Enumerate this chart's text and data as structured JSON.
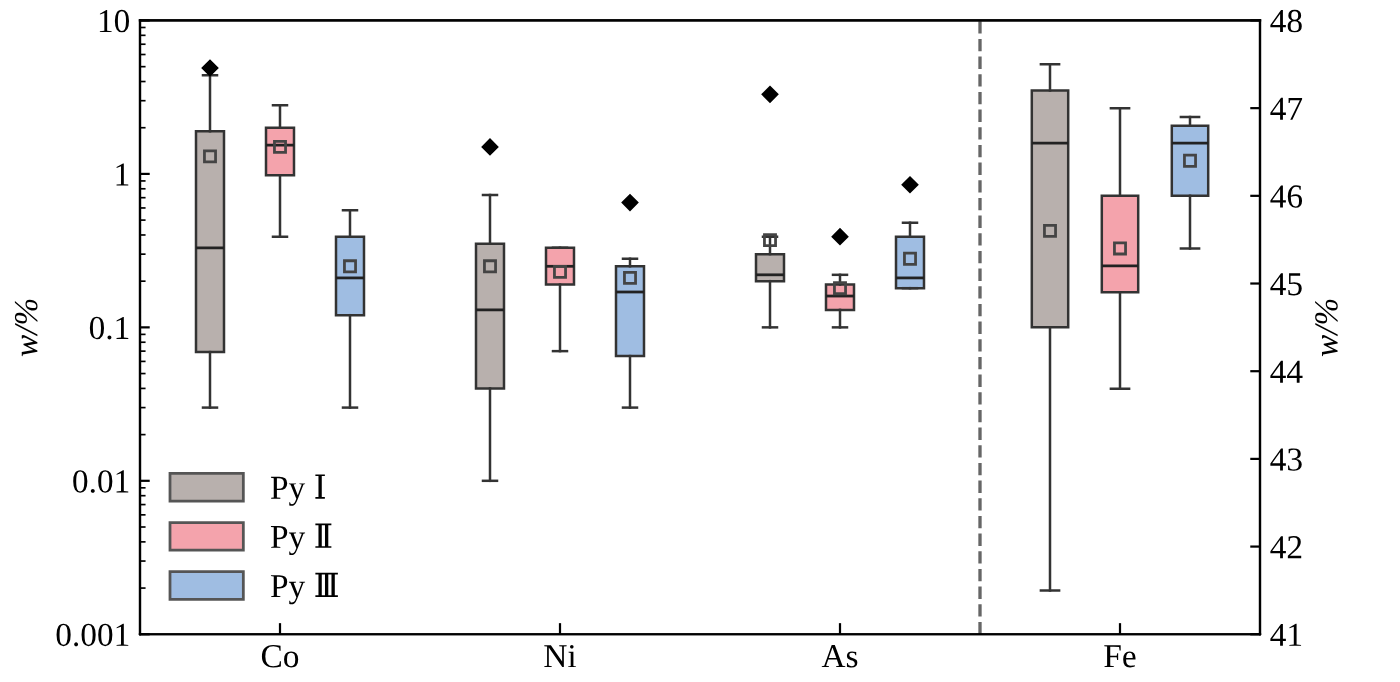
{
  "chart_data": {
    "type": "box",
    "ylabel": "w/%",
    "y2label": "w/%",
    "categories": [
      "Co",
      "Ni",
      "As",
      "Fe"
    ],
    "log": "y",
    "ylim": [
      0.001,
      10
    ],
    "yticks": [
      0.001,
      0.01,
      0.1,
      1,
      10
    ],
    "y2lim": [
      41,
      48
    ],
    "y2ticks": [
      41,
      42,
      43,
      44,
      45,
      46,
      47,
      48
    ],
    "grid": false,
    "legend": "bottom left",
    "series": [
      {
        "name": "Py Ⅰ",
        "color": "#b8b0ad",
        "boxes": [
          {
            "low": 0.03,
            "q1": 0.069,
            "median": 0.33,
            "q3": 1.9,
            "high": 4.4,
            "mean": 1.3,
            "outliers": [
              4.9
            ]
          },
          {
            "low": 0.01,
            "q1": 0.04,
            "median": 0.13,
            "q3": 0.35,
            "high": 0.73,
            "mean": 0.25,
            "outliers": [
              1.5
            ]
          },
          {
            "low": 0.1,
            "q1": 0.2,
            "median": 0.22,
            "q3": 0.3,
            "high": 0.39,
            "mean": 0.37,
            "outliers": [
              3.3
            ]
          },
          null
        ]
      },
      {
        "name": "Py Ⅱ",
        "color": "#f4a3ac",
        "boxes": [
          {
            "low": 0.39,
            "q1": 0.98,
            "median": 1.54,
            "q3": 2.0,
            "high": 2.8,
            "mean": 1.5
          },
          {
            "low": 0.07,
            "q1": 0.19,
            "median": 0.25,
            "q3": 0.33,
            "high": 0.33,
            "mean": 0.23
          },
          {
            "low": 0.1,
            "q1": 0.13,
            "median": 0.16,
            "q3": 0.19,
            "high": 0.22,
            "mean": 0.18,
            "outliers": [
              0.39
            ]
          },
          null
        ]
      },
      {
        "name": "Py Ⅲ",
        "color": "#9fbde2",
        "boxes": [
          {
            "low": 0.03,
            "q1": 0.12,
            "median": 0.21,
            "q3": 0.39,
            "high": 0.58,
            "mean": 0.25
          },
          {
            "low": 0.03,
            "q1": 0.065,
            "median": 0.17,
            "q3": 0.25,
            "high": 0.28,
            "mean": 0.21,
            "outliers": [
              0.65
            ]
          },
          {
            "low": 0.18,
            "q1": 0.18,
            "median": 0.21,
            "q3": 0.39,
            "high": 0.48,
            "mean": 0.28,
            "outliers": [
              0.85
            ]
          },
          null
        ]
      },
      {
        "color": "#b8b0ad",
        "axis": "y2",
        "boxes": [
          null,
          null,
          null,
          {
            "low": 41.5,
            "q1": 44.5,
            "median": 46.6,
            "q3": 47.2,
            "high": 47.5,
            "mean": 45.6
          }
        ]
      },
      {
        "color": "#f4a3ac",
        "axis": "y2",
        "boxes": [
          null,
          null,
          null,
          {
            "low": 43.8,
            "q1": 44.9,
            "median": 45.2,
            "q3": 46.0,
            "high": 47.0,
            "mean": 45.4
          }
        ]
      },
      {
        "color": "#9fbde2",
        "axis": "y2",
        "boxes": [
          null,
          null,
          null,
          {
            "low": 45.4,
            "q1": 46.0,
            "median": 46.6,
            "q3": 46.8,
            "high": 46.9,
            "mean": 46.4
          }
        ]
      }
    ]
  }
}
